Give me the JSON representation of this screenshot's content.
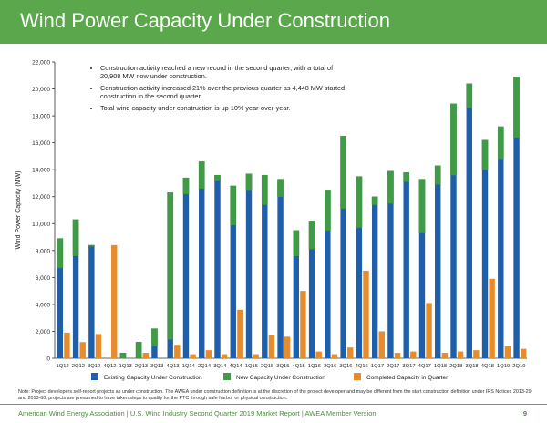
{
  "header": {
    "title": "Wind Power Capacity Under Construction"
  },
  "notes": {
    "items": [
      "Construction activity reached a new record in the second quarter, with a total of 20,908 MW now under construction.",
      "Construction activity increased 21% over the previous quarter as 4,448 MW started construction in the second quarter.",
      "Total wind capacity under construction is up 10% year-over-year."
    ]
  },
  "footnote": "Note: Project developers self-report projects as under construction. The AWEA under construction definition is at the discretion of the project developer and may be different from the start construction definition under IRS Notices 2013-29 and 2013-60; projects are presumed to have taken steps to qualify for the PTC through safe harbor or physical construction.",
  "footer": {
    "text": "American Wind Energy Association  |  U.S. Wind Industry Second Quarter 2019 Market Report  |  AWEA Member Version",
    "page": "9"
  },
  "colors": {
    "existing": "#1f5ea8",
    "new": "#3f9b45",
    "completed": "#e88b2a",
    "banner": "#5aa84b"
  },
  "chart_data": {
    "type": "bar",
    "stacking": "existing+new stacked, completed side-by-side",
    "ylabel": "Wind Power Capacity (MW)",
    "xlabel": "",
    "ylim": [
      0,
      22000
    ],
    "yticks": [
      0,
      2000,
      4000,
      6000,
      8000,
      10000,
      12000,
      14000,
      16000,
      18000,
      20000,
      22000
    ],
    "ytick_labels": [
      "0",
      "2,000",
      "4,000",
      "6,000",
      "8,000",
      "10,000",
      "12,000",
      "14,000",
      "16,000",
      "18,000",
      "20,000",
      "22,000"
    ],
    "grid": false,
    "legend_position": "bottom",
    "categories": [
      "1Q12",
      "2Q12",
      "3Q12",
      "4Q12",
      "1Q13",
      "2Q13",
      "3Q13",
      "4Q13",
      "1Q14",
      "2Q14",
      "3Q14",
      "4Q14",
      "1Q15",
      "2Q15",
      "3Q15",
      "4Q15",
      "1Q16",
      "2Q16",
      "3Q16",
      "4Q16",
      "1Q17",
      "2Q17",
      "3Q17",
      "4Q17",
      "1Q18",
      "2Q18",
      "3Q18",
      "4Q18",
      "1Q19",
      "2Q19"
    ],
    "series": [
      {
        "name": "Existing Capacity Under Construction",
        "values": [
          6700,
          7600,
          8300,
          0,
          0,
          0,
          900,
          1400,
          12200,
          12600,
          13200,
          9900,
          12500,
          11400,
          12000,
          7600,
          8100,
          9500,
          11100,
          9700,
          11400,
          11500,
          13100,
          9300,
          12900,
          13600,
          18600,
          14000,
          14800,
          16400
        ]
      },
      {
        "name": "New Capacity Under Construction",
        "values": [
          2200,
          2700,
          100,
          0,
          400,
          1200,
          1300,
          10900,
          1200,
          2000,
          400,
          2900,
          1200,
          2200,
          1300,
          1900,
          2100,
          3000,
          5400,
          3800,
          600,
          2400,
          700,
          4000,
          1400,
          5300,
          1800,
          2200,
          2400,
          4500
        ]
      },
      {
        "name": "Completed Capacity in Quarter",
        "values": [
          1900,
          1200,
          1800,
          8400,
          0,
          400,
          0,
          1000,
          300,
          600,
          300,
          3600,
          300,
          1700,
          1600,
          5000,
          500,
          300,
          800,
          6500,
          2000,
          400,
          500,
          4100,
          400,
          500,
          600,
          5900,
          900,
          700
        ]
      }
    ]
  }
}
